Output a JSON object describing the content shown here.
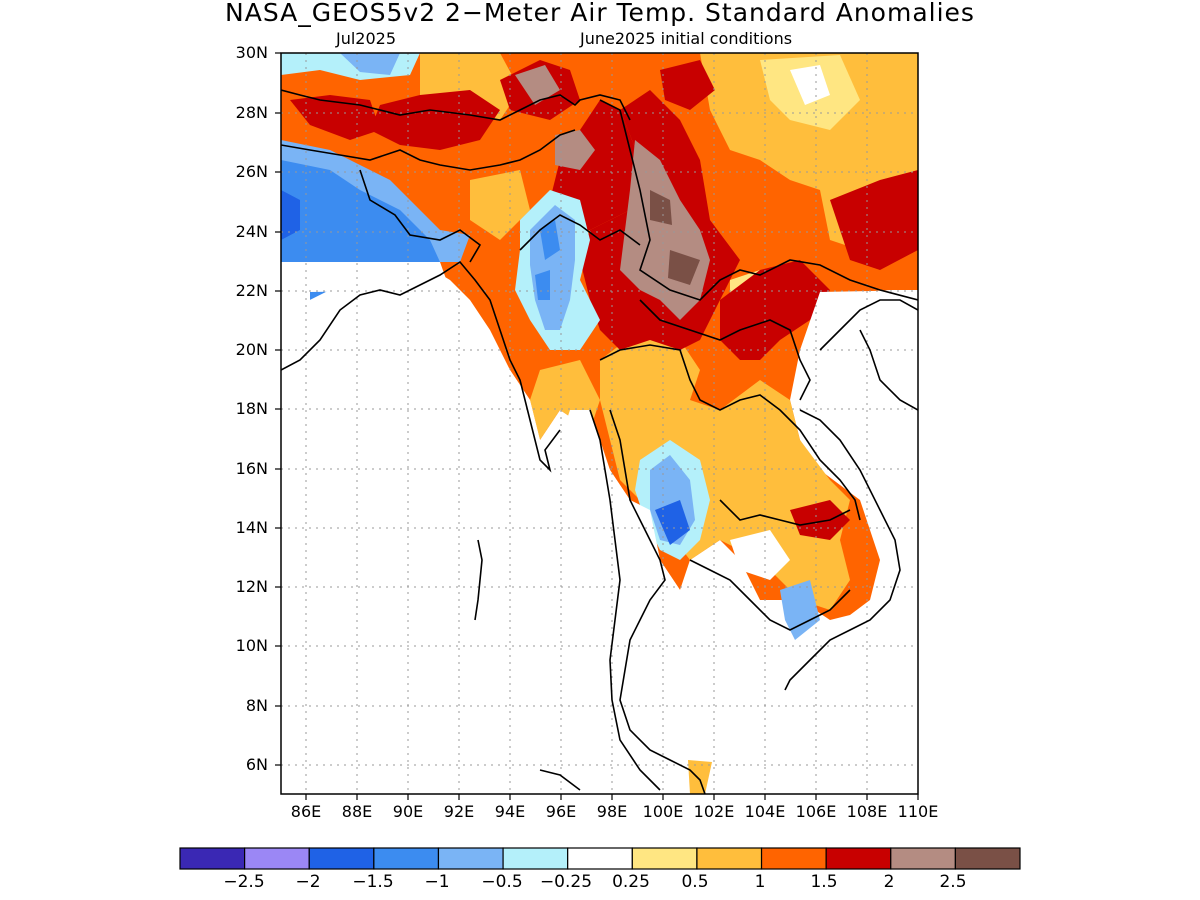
{
  "title": "NASA_GEOS5v2 2−Meter Air Temp. Standard Anomalies",
  "subtitle_left": "Jul2025",
  "subtitle_right": "June2025 initial conditions",
  "map": {
    "lat_labels": [
      "30N",
      "28N",
      "26N",
      "24N",
      "22N",
      "20N",
      "18N",
      "16N",
      "14N",
      "12N",
      "10N",
      "8N",
      "6N"
    ],
    "lon_labels": [
      "86E",
      "88E",
      "90E",
      "92E",
      "94E",
      "96E",
      "98E",
      "100E",
      "102E",
      "104E",
      "106E",
      "108E",
      "110E"
    ],
    "grid": "dotted"
  },
  "colorbar": {
    "colors": [
      "#3a28b4",
      "#9b87f5",
      "#1f62e6",
      "#3c8cf0",
      "#7ab4f5",
      "#b4f0fa",
      "#ffffff",
      "#ffe682",
      "#ffbe3c",
      "#ff6400",
      "#c80000",
      "#b48c82",
      "#7a5046"
    ],
    "labels": [
      "−2.5",
      "−2",
      "−1.5",
      "−1",
      "−0.5",
      "−0.25",
      "0.25",
      "0.5",
      "1",
      "1.5",
      "2",
      "2.5"
    ]
  }
}
